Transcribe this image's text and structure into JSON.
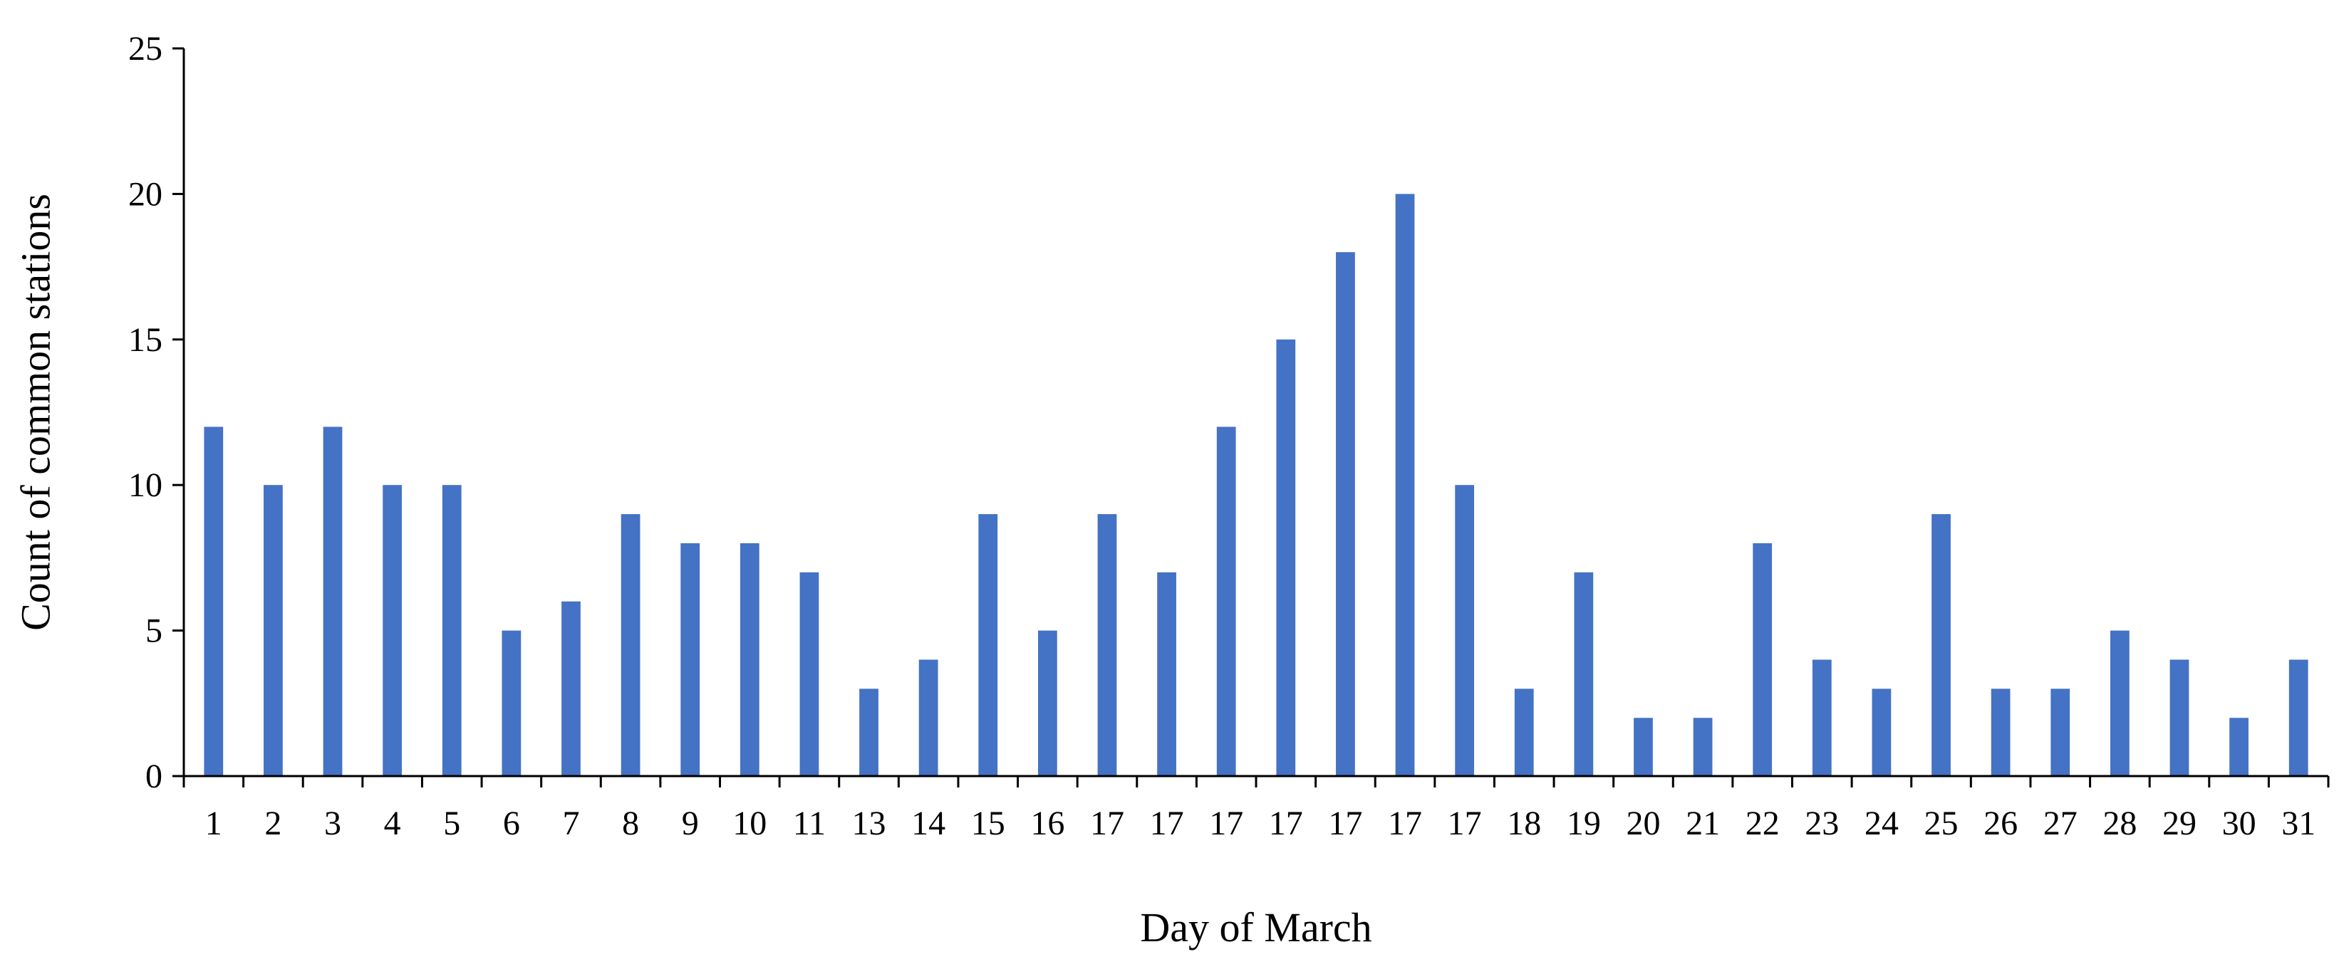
{
  "chart_data": {
    "type": "bar",
    "title": "",
    "xlabel": "Day of March",
    "ylabel": "Count of common stations",
    "categories": [
      "1",
      "2",
      "3",
      "4",
      "5",
      "6",
      "7",
      "8",
      "9",
      "10",
      "11",
      "13",
      "14",
      "15",
      "16",
      "17",
      "17",
      "17",
      "17",
      "17",
      "17",
      "17",
      "18",
      "19",
      "20",
      "21",
      "22",
      "23",
      "24",
      "25",
      "26",
      "27",
      "28",
      "29",
      "30",
      "31"
    ],
    "values": [
      12,
      10,
      12,
      10,
      10,
      5,
      6,
      9,
      8,
      8,
      7,
      3,
      4,
      9,
      5,
      9,
      7,
      12,
      15,
      18,
      20,
      10,
      3,
      7,
      2,
      2,
      8,
      4,
      3,
      9,
      3,
      3,
      5,
      4,
      2,
      4
    ],
    "yticks": [
      0,
      5,
      10,
      15,
      20,
      25
    ],
    "ylim": [
      0,
      25
    ],
    "grid": false,
    "legend": "none",
    "bar_color": "#4472C4"
  }
}
